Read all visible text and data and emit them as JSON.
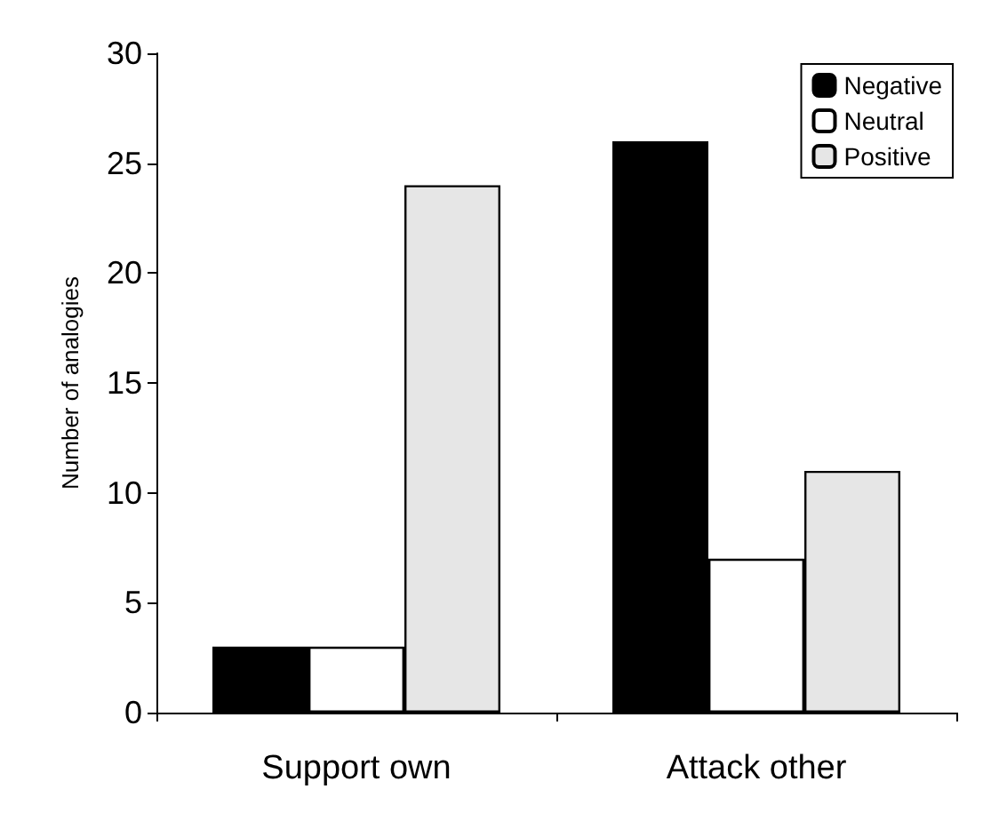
{
  "chart_data": {
    "type": "bar",
    "ylabel": "Number of analogies",
    "categories": [
      "Support own",
      "Attack other"
    ],
    "series": [
      {
        "name": "Negative",
        "color": "#000000",
        "values": [
          3,
          26
        ]
      },
      {
        "name": "Neutral",
        "color": "#ffffff",
        "values": [
          3,
          7
        ]
      },
      {
        "name": "Positive",
        "color": "#e6e6e6",
        "values": [
          24,
          11
        ]
      }
    ],
    "ylim": [
      0,
      30
    ],
    "yticks": [
      0,
      5,
      10,
      15,
      20,
      25,
      30
    ],
    "grid": false,
    "legend": "top right"
  }
}
